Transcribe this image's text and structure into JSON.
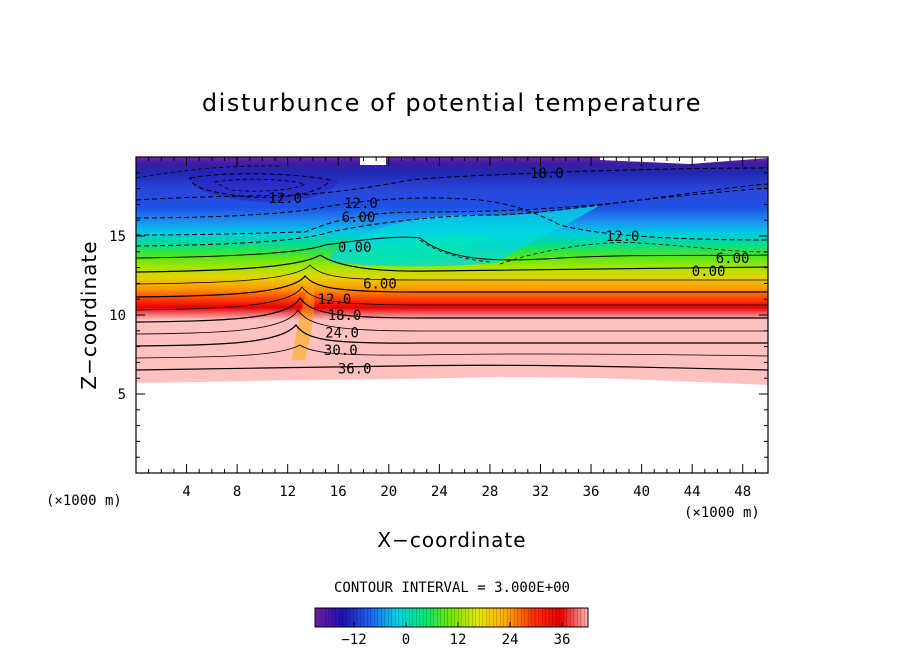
{
  "chart_data": {
    "type": "heatmap",
    "title": "disturbunce of potential temperature",
    "xlabel": "X−coordinate",
    "ylabel": "Z−coordinate",
    "x_unit": "(×1000 m)",
    "y_unit": "(×1000 m)",
    "xlim": [
      0,
      50
    ],
    "ylim": [
      0,
      20
    ],
    "x_ticks": [
      4,
      8,
      12,
      16,
      20,
      24,
      28,
      32,
      36,
      40,
      44,
      48
    ],
    "y_ticks": [
      5,
      10,
      15
    ],
    "contour_interval_label": "CONTOUR INTERVAL = 3.000E+00",
    "contour_interval": 3,
    "colorbar": {
      "range": [
        -21,
        42
      ],
      "ticks": [
        -12,
        0,
        12,
        24,
        36
      ],
      "tick_labels": [
        "−12",
        "0",
        "12",
        "24",
        "36"
      ],
      "colors": [
        "#6e1fa0",
        "#2010b0",
        "#1f5ff0",
        "#00d2e6",
        "#00e678",
        "#78e600",
        "#e6e600",
        "#ffaa00",
        "#ff3000",
        "#e60000",
        "#ffb4b4"
      ]
    },
    "contour_labels": [
      {
        "text": "18.0",
        "x": 32.5,
        "z": 19.0
      },
      {
        "text": "12.0",
        "x": 11.8,
        "z": 17.4
      },
      {
        "text": "12.0",
        "x": 17.8,
        "z": 17.1
      },
      {
        "text": "6.00",
        "x": 17.6,
        "z": 16.2
      },
      {
        "text": "12.0",
        "x": 38.5,
        "z": 15.0
      },
      {
        "text": "0.00",
        "x": 17.3,
        "z": 14.3
      },
      {
        "text": "6.00",
        "x": 47.2,
        "z": 13.6
      },
      {
        "text": "0.00",
        "x": 45.3,
        "z": 12.8
      },
      {
        "text": "6.00",
        "x": 19.3,
        "z": 12.0
      },
      {
        "text": "12.0",
        "x": 15.7,
        "z": 11.0
      },
      {
        "text": "18.0",
        "x": 16.5,
        "z": 10.0
      },
      {
        "text": "24.0",
        "x": 16.3,
        "z": 8.9
      },
      {
        "text": "30.0",
        "x": 16.2,
        "z": 7.8
      },
      {
        "text": "36.0",
        "x": 17.3,
        "z": 6.6
      }
    ]
  }
}
